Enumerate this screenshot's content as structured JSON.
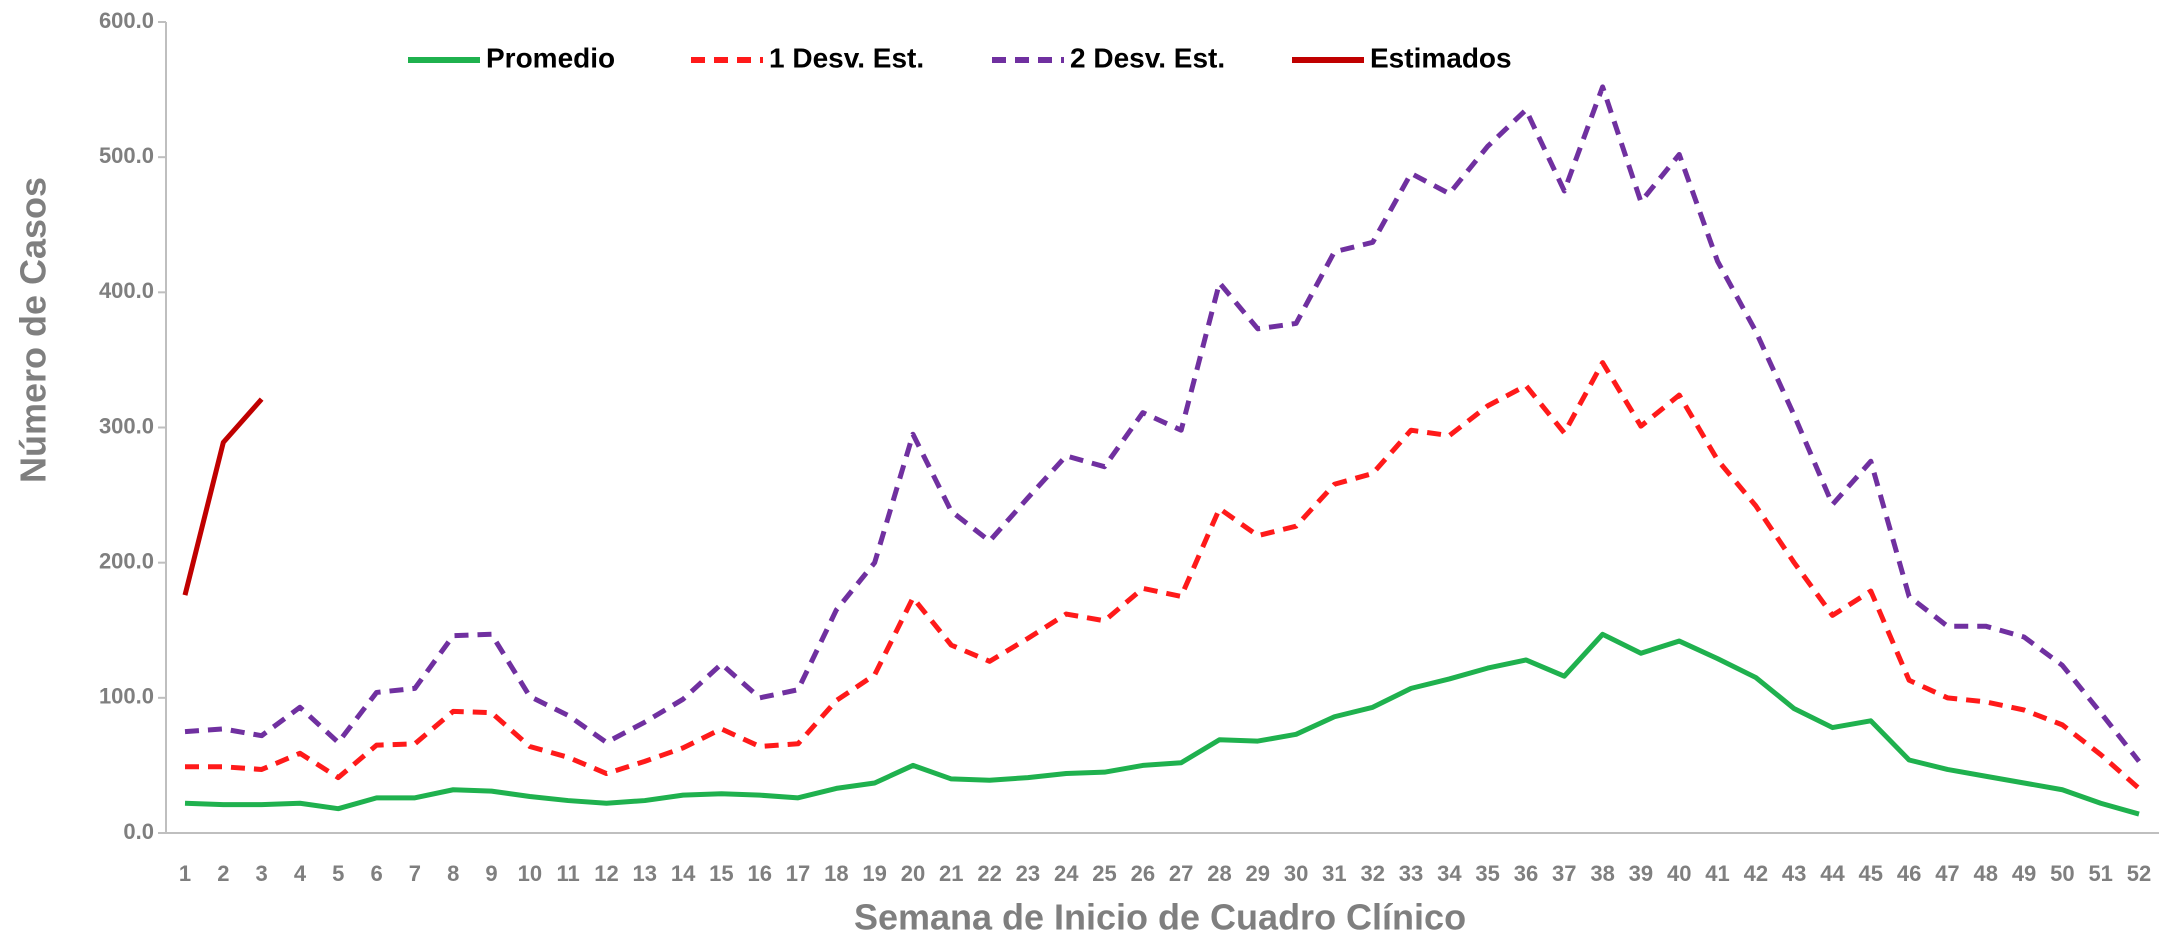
{
  "chart_data": {
    "type": "line",
    "xlabel": "Semana de Inicio de Cuadro Clínico",
    "ylabel": "Número de Casos",
    "categories": [
      1,
      2,
      3,
      4,
      5,
      6,
      7,
      8,
      9,
      10,
      11,
      12,
      13,
      14,
      15,
      16,
      17,
      18,
      19,
      20,
      21,
      22,
      23,
      24,
      25,
      26,
      27,
      28,
      29,
      30,
      31,
      32,
      33,
      34,
      35,
      36,
      37,
      38,
      39,
      40,
      41,
      42,
      43,
      44,
      45,
      46,
      47,
      48,
      49,
      50,
      51,
      52
    ],
    "ylim": [
      0,
      600
    ],
    "yticks": [
      {
        "value": 0,
        "label": "0.0"
      },
      {
        "value": 100,
        "label": "100.0"
      },
      {
        "value": 200,
        "label": "200.0"
      },
      {
        "value": 300,
        "label": "300.0"
      },
      {
        "value": 400,
        "label": "400.0"
      },
      {
        "value": 500,
        "label": "500.0"
      },
      {
        "value": 600,
        "label": "600.0"
      }
    ],
    "series": [
      {
        "name": "Promedio",
        "color": "#1fb14e",
        "dashed": false,
        "values": [
          22,
          21,
          21,
          22,
          18,
          26,
          26,
          32,
          31,
          27,
          24,
          22,
          24,
          28,
          29,
          28,
          26,
          33,
          37,
          50,
          40,
          39,
          41,
          44,
          45,
          50,
          52,
          69,
          68,
          73,
          86,
          93,
          107,
          114,
          122,
          128,
          116,
          147,
          133,
          142,
          129,
          115,
          92,
          78,
          83,
          54,
          47,
          42,
          37,
          32,
          22,
          14
        ]
      },
      {
        "name": "1 Desv. Est.",
        "color": "#ff1a1a",
        "dashed": true,
        "values": [
          49,
          49,
          47,
          59,
          41,
          65,
          66,
          90,
          89,
          64,
          56,
          44,
          53,
          63,
          77,
          64,
          66,
          98,
          117,
          174,
          139,
          127,
          144,
          162,
          157,
          181,
          175,
          240,
          220,
          227,
          258,
          266,
          298,
          294,
          316,
          331,
          296,
          348,
          301,
          324,
          276,
          242,
          200,
          161,
          179,
          113,
          100,
          97,
          91,
          80,
          58,
          33
        ]
      },
      {
        "name": "2 Desv. Est.",
        "color": "#7030a0",
        "dashed": true,
        "values": [
          75,
          77,
          72,
          93,
          67,
          104,
          107,
          146,
          147,
          101,
          87,
          67,
          82,
          99,
          125,
          100,
          106,
          165,
          200,
          295,
          238,
          216,
          248,
          279,
          271,
          311,
          298,
          407,
          373,
          377,
          430,
          437,
          488,
          473,
          508,
          535,
          475,
          552,
          467,
          502,
          423,
          371,
          309,
          243,
          275,
          175,
          153,
          153,
          145,
          124,
          89,
          53
        ]
      },
      {
        "name": "Estimados",
        "color": "#c00000",
        "dashed": false,
        "values": [
          176,
          289,
          321,
          null,
          null,
          null,
          null,
          null,
          null,
          null,
          null,
          null,
          null,
          null,
          null,
          null,
          null,
          null,
          null,
          null,
          null,
          null,
          null,
          null,
          null,
          null,
          null,
          null,
          null,
          null,
          null,
          null,
          null,
          null,
          null,
          null,
          null,
          null,
          null,
          null,
          null,
          null,
          null,
          null,
          null,
          null,
          null,
          null,
          null,
          null,
          null,
          null
        ]
      }
    ]
  }
}
